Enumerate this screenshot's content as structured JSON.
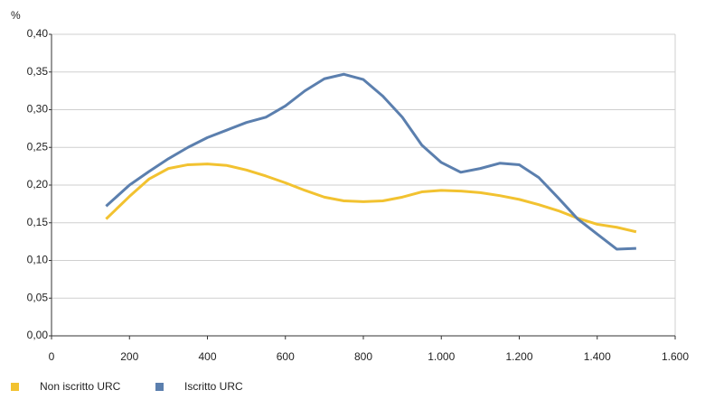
{
  "chart_data": {
    "type": "line",
    "y_label": "%",
    "x": [
      140,
      200,
      250,
      300,
      350,
      400,
      450,
      500,
      550,
      600,
      650,
      700,
      750,
      800,
      850,
      900,
      950,
      1000,
      1050,
      1100,
      1150,
      1200,
      1250,
      1300,
      1350,
      1400,
      1450,
      1500
    ],
    "series": [
      {
        "name": "Non iscritto URC",
        "color": "#f2c230",
        "values": [
          0.155,
          0.185,
          0.208,
          0.222,
          0.227,
          0.228,
          0.226,
          0.22,
          0.212,
          0.203,
          0.193,
          0.184,
          0.179,
          0.178,
          0.179,
          0.184,
          0.191,
          0.193,
          0.192,
          0.19,
          0.186,
          0.181,
          0.174,
          0.166,
          0.156,
          0.148,
          0.144,
          0.138
        ]
      },
      {
        "name": "Iscritto URC",
        "color": "#5b7fae",
        "values": [
          0.172,
          0.2,
          0.218,
          0.235,
          0.25,
          0.263,
          0.273,
          0.283,
          0.29,
          0.305,
          0.325,
          0.341,
          0.347,
          0.34,
          0.318,
          0.29,
          0.253,
          0.23,
          0.217,
          0.222,
          0.229,
          0.227,
          0.21,
          0.183,
          0.155,
          0.135,
          0.115,
          0.116
        ]
      }
    ],
    "xlim": [
      0,
      1600
    ],
    "xticks": [
      0,
      200,
      400,
      600,
      800,
      {
        "value": 1000,
        "label": "1.000"
      },
      {
        "value": 1200,
        "label": "1.200"
      },
      {
        "value": 1400,
        "label": "1.400"
      },
      {
        "value": 1600,
        "label": "1.600"
      }
    ],
    "ylim": [
      0,
      0.4
    ],
    "yticks": [
      {
        "value": 0,
        "label": "0,00"
      },
      {
        "value": 0.05,
        "label": "0,05"
      },
      {
        "value": 0.1,
        "label": "0,10"
      },
      {
        "value": 0.15,
        "label": "0,15"
      },
      {
        "value": 0.2,
        "label": "0,20"
      },
      {
        "value": 0.25,
        "label": "0,25"
      },
      {
        "value": 0.3,
        "label": "0,30"
      },
      {
        "value": 0.35,
        "label": "0,35"
      },
      {
        "value": 0.4,
        "label": "0,40"
      }
    ],
    "grid": true
  }
}
